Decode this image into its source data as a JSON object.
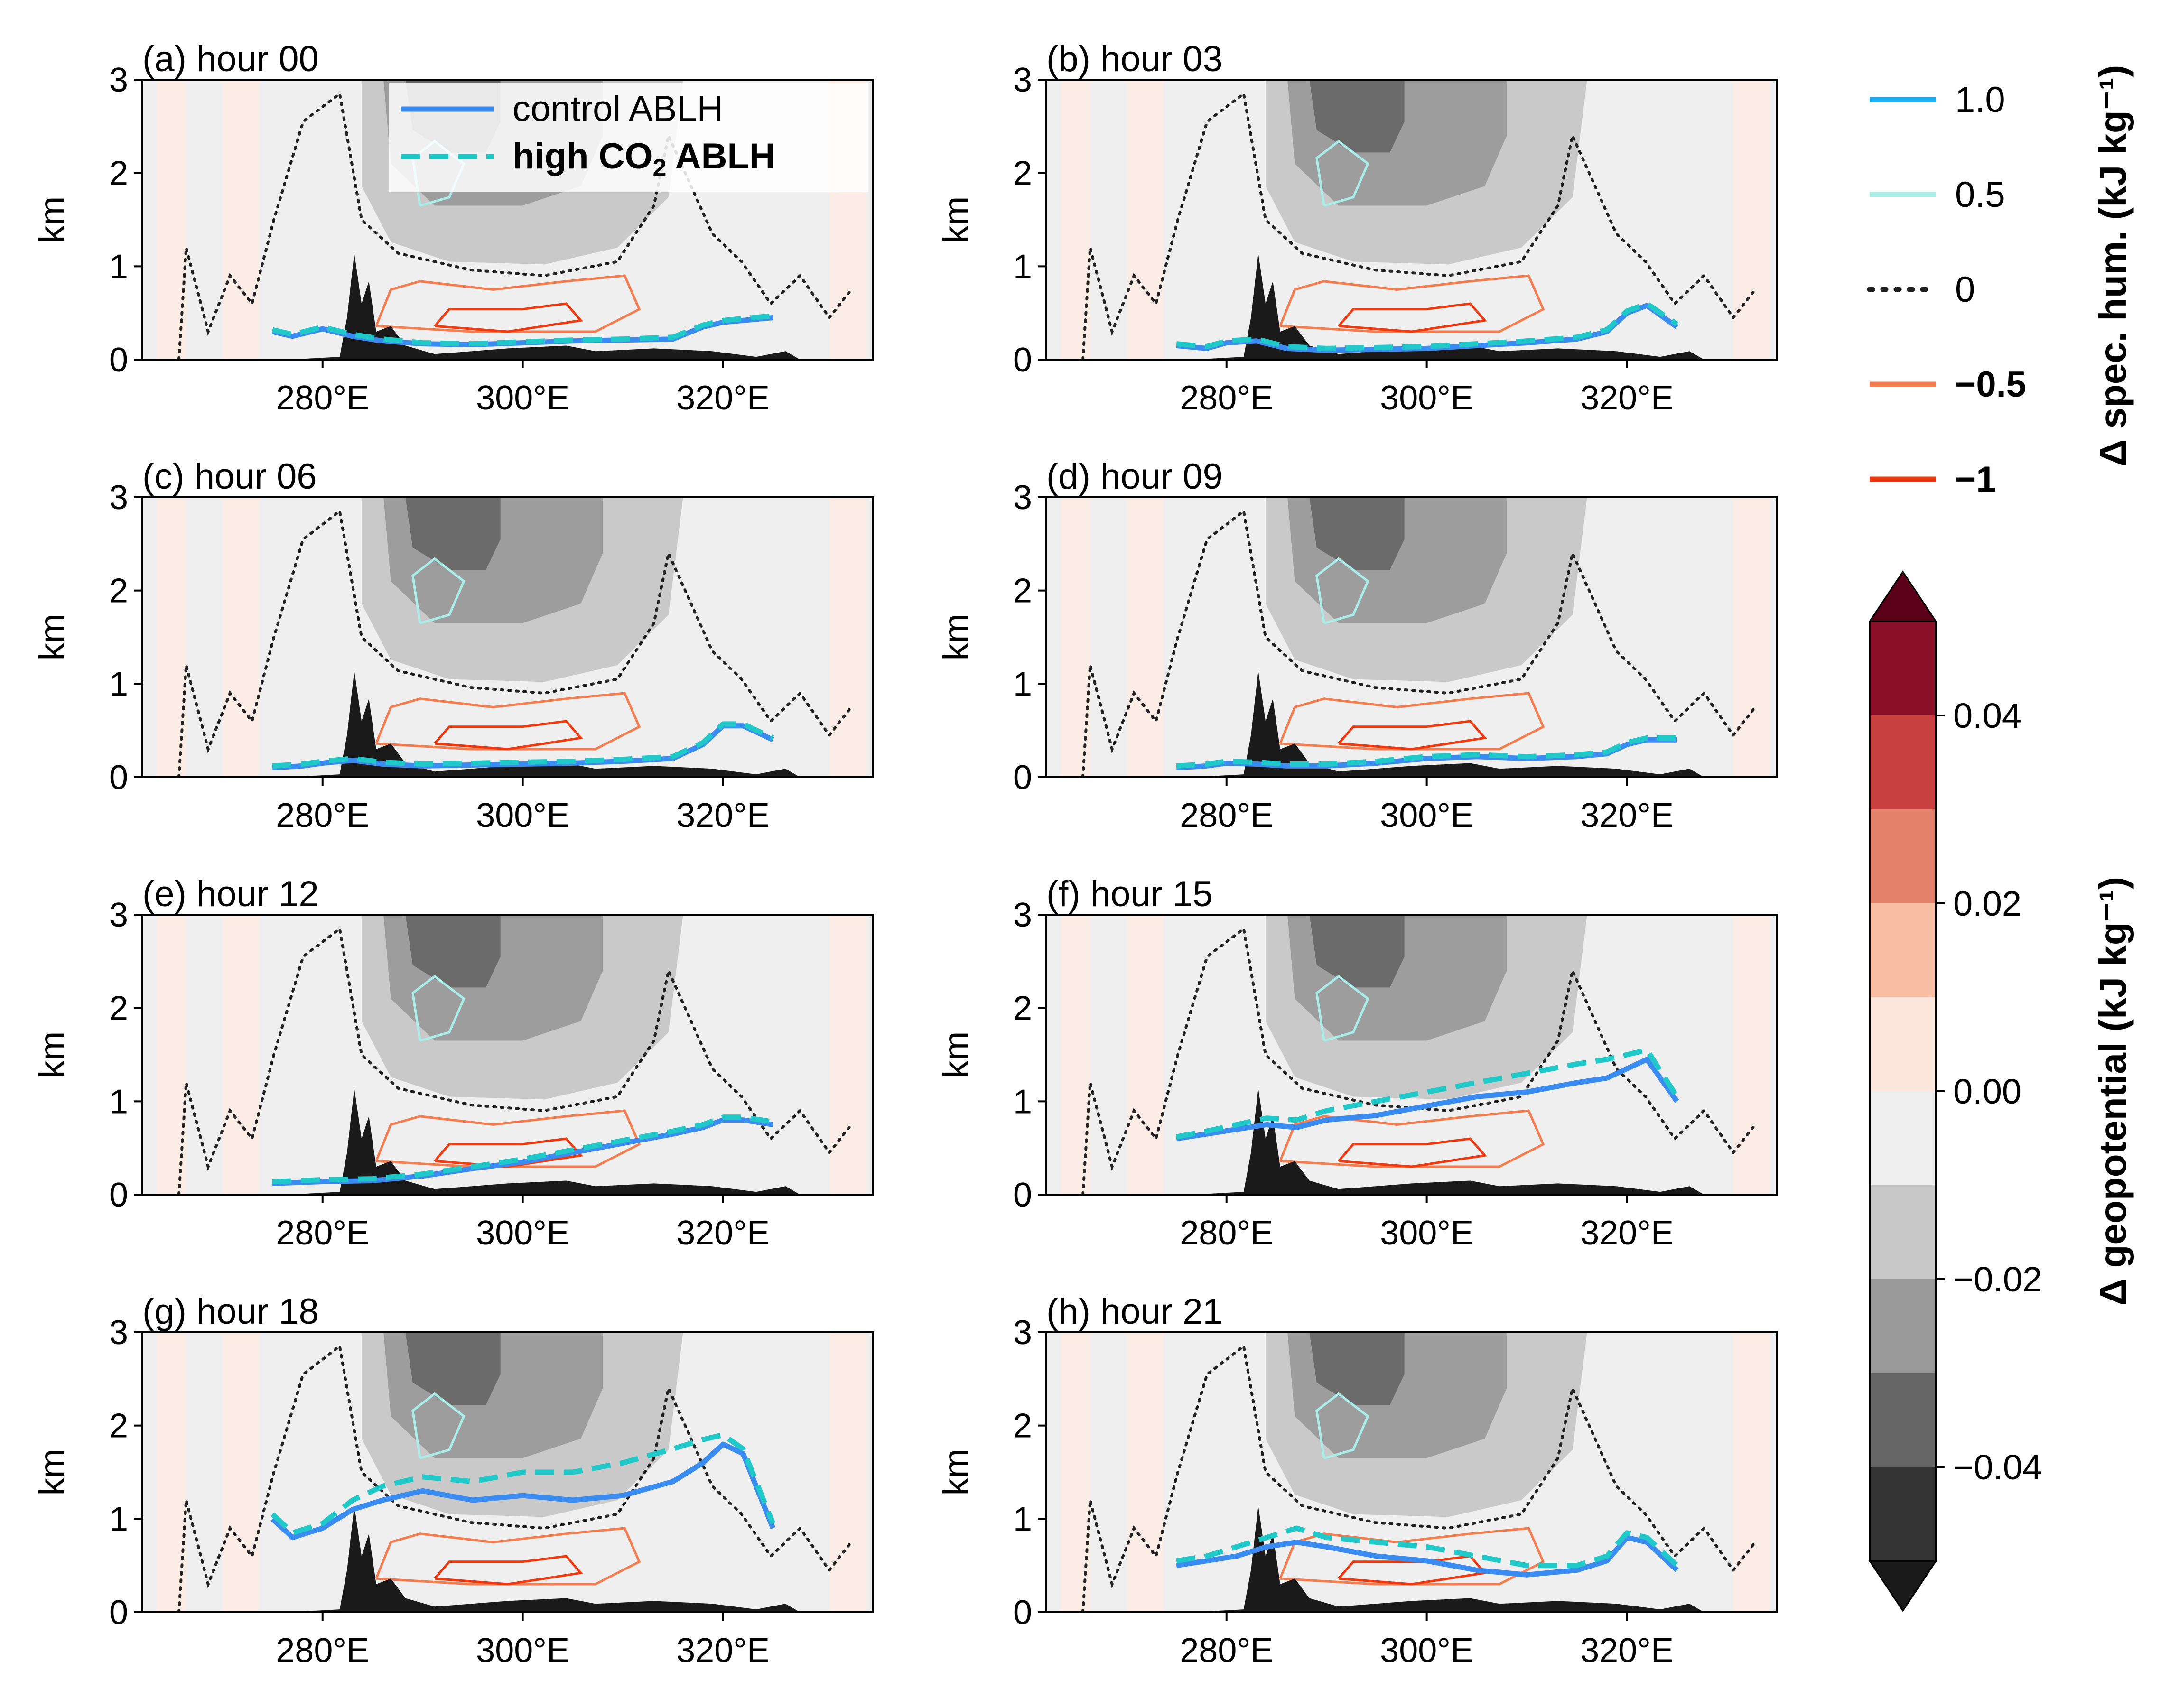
{
  "chart_data": [
    {
      "type": "line",
      "panel": "a",
      "title": "(a) hour 00",
      "ylabel": "km",
      "xlabel": "",
      "xlim": [
        262,
        335
      ],
      "ylim": [
        0,
        3
      ],
      "x_ticks": [
        "280°E",
        "300°E",
        "320°E"
      ],
      "x_tick_values": [
        280,
        300,
        320
      ],
      "y_ticks": [
        "0",
        "1",
        "2",
        "3"
      ],
      "legend": [
        {
          "label": "control ABLH",
          "style": "solid",
          "color": "#3b8cf0"
        },
        {
          "label": "high CO",
          "sub": "2",
          "suffix": " ABLH",
          "style": "dashed",
          "color": "#20c8c8",
          "bold": true
        }
      ],
      "series": [
        {
          "name": "control ABLH",
          "x": [
            275,
            277,
            280,
            283,
            286,
            290,
            295,
            300,
            305,
            310,
            315,
            318,
            320,
            322,
            325
          ],
          "y": [
            0.3,
            0.25,
            0.33,
            0.25,
            0.2,
            0.17,
            0.16,
            0.18,
            0.2,
            0.21,
            0.22,
            0.35,
            0.4,
            0.42,
            0.45
          ]
        },
        {
          "name": "high CO2 ABLH",
          "x": [
            275,
            277,
            280,
            283,
            286,
            290,
            295,
            300,
            305,
            310,
            315,
            318,
            320,
            322,
            325
          ],
          "y": [
            0.32,
            0.27,
            0.35,
            0.27,
            0.22,
            0.18,
            0.17,
            0.19,
            0.21,
            0.22,
            0.24,
            0.37,
            0.42,
            0.44,
            0.47
          ]
        }
      ]
    },
    {
      "type": "line",
      "panel": "b",
      "title": "(b) hour 03",
      "ylabel": "km",
      "xlim": [
        262,
        335
      ],
      "ylim": [
        0,
        3
      ],
      "x_ticks": [
        "280°E",
        "300°E",
        "320°E"
      ],
      "x_tick_values": [
        280,
        300,
        320
      ],
      "y_ticks": [
        "0",
        "1",
        "2",
        "3"
      ],
      "series": [
        {
          "name": "control ABLH",
          "x": [
            275,
            278,
            280,
            283,
            286,
            290,
            295,
            300,
            305,
            310,
            315,
            318,
            320,
            322,
            325
          ],
          "y": [
            0.15,
            0.12,
            0.18,
            0.2,
            0.12,
            0.1,
            0.11,
            0.12,
            0.15,
            0.18,
            0.22,
            0.3,
            0.5,
            0.58,
            0.35
          ]
        },
        {
          "name": "high CO2 ABLH",
          "x": [
            275,
            278,
            280,
            283,
            286,
            290,
            295,
            300,
            305,
            310,
            315,
            318,
            320,
            322,
            325
          ],
          "y": [
            0.17,
            0.14,
            0.2,
            0.22,
            0.14,
            0.12,
            0.13,
            0.14,
            0.17,
            0.2,
            0.24,
            0.32,
            0.52,
            0.6,
            0.38
          ]
        }
      ]
    },
    {
      "type": "line",
      "panel": "c",
      "title": "(c) hour 06",
      "ylabel": "km",
      "xlim": [
        262,
        335
      ],
      "ylim": [
        0,
        3
      ],
      "x_ticks": [
        "280°E",
        "300°E",
        "320°E"
      ],
      "x_tick_values": [
        280,
        300,
        320
      ],
      "y_ticks": [
        "0",
        "1",
        "2",
        "3"
      ],
      "series": [
        {
          "name": "control ABLH",
          "x": [
            275,
            278,
            280,
            283,
            286,
            290,
            295,
            300,
            305,
            310,
            315,
            318,
            320,
            322,
            325
          ],
          "y": [
            0.1,
            0.12,
            0.15,
            0.18,
            0.14,
            0.12,
            0.13,
            0.14,
            0.15,
            0.17,
            0.2,
            0.35,
            0.55,
            0.55,
            0.4
          ]
        },
        {
          "name": "high CO2 ABLH",
          "x": [
            275,
            278,
            280,
            283,
            286,
            290,
            295,
            300,
            305,
            310,
            315,
            318,
            320,
            322,
            325
          ],
          "y": [
            0.12,
            0.14,
            0.17,
            0.2,
            0.16,
            0.14,
            0.15,
            0.16,
            0.17,
            0.19,
            0.22,
            0.37,
            0.57,
            0.57,
            0.42
          ]
        }
      ]
    },
    {
      "type": "line",
      "panel": "d",
      "title": "(d) hour 09",
      "ylabel": "km",
      "xlim": [
        262,
        335
      ],
      "ylim": [
        0,
        3
      ],
      "x_ticks": [
        "280°E",
        "300°E",
        "320°E"
      ],
      "x_tick_values": [
        280,
        300,
        320
      ],
      "y_ticks": [
        "0",
        "1",
        "2",
        "3"
      ],
      "series": [
        {
          "name": "control ABLH",
          "x": [
            275,
            278,
            280,
            283,
            286,
            290,
            295,
            300,
            305,
            310,
            315,
            318,
            320,
            322,
            325
          ],
          "y": [
            0.1,
            0.12,
            0.15,
            0.14,
            0.12,
            0.12,
            0.15,
            0.2,
            0.22,
            0.2,
            0.22,
            0.25,
            0.35,
            0.4,
            0.4
          ]
        },
        {
          "name": "high CO2 ABLH",
          "x": [
            275,
            278,
            280,
            283,
            286,
            290,
            295,
            300,
            305,
            310,
            315,
            318,
            320,
            322,
            325
          ],
          "y": [
            0.12,
            0.14,
            0.17,
            0.16,
            0.14,
            0.14,
            0.17,
            0.22,
            0.24,
            0.22,
            0.24,
            0.27,
            0.37,
            0.42,
            0.42
          ]
        }
      ]
    },
    {
      "type": "line",
      "panel": "e",
      "title": "(e) hour 12",
      "ylabel": "km",
      "xlim": [
        262,
        335
      ],
      "ylim": [
        0,
        3
      ],
      "x_ticks": [
        "280°E",
        "300°E",
        "320°E"
      ],
      "x_tick_values": [
        280,
        300,
        320
      ],
      "y_ticks": [
        "0",
        "1",
        "2",
        "3"
      ],
      "series": [
        {
          "name": "control ABLH",
          "x": [
            275,
            280,
            285,
            290,
            295,
            300,
            305,
            310,
            315,
            318,
            320,
            322,
            325
          ],
          "y": [
            0.12,
            0.14,
            0.15,
            0.2,
            0.28,
            0.35,
            0.45,
            0.55,
            0.65,
            0.72,
            0.8,
            0.8,
            0.75
          ]
        },
        {
          "name": "high CO2 ABLH",
          "x": [
            275,
            280,
            285,
            290,
            295,
            300,
            305,
            310,
            315,
            318,
            320,
            322,
            325
          ],
          "y": [
            0.14,
            0.16,
            0.17,
            0.22,
            0.3,
            0.38,
            0.48,
            0.58,
            0.68,
            0.75,
            0.83,
            0.83,
            0.78
          ]
        }
      ]
    },
    {
      "type": "line",
      "panel": "f",
      "title": "(f) hour 15",
      "ylabel": "km",
      "xlim": [
        262,
        335
      ],
      "ylim": [
        0,
        3
      ],
      "x_ticks": [
        "280°E",
        "300°E",
        "320°E"
      ],
      "x_tick_values": [
        280,
        300,
        320
      ],
      "y_ticks": [
        "0",
        "1",
        "2",
        "3"
      ],
      "series": [
        {
          "name": "control ABLH",
          "x": [
            275,
            278,
            281,
            284,
            287,
            290,
            295,
            300,
            305,
            310,
            315,
            318,
            320,
            322,
            325
          ],
          "y": [
            0.6,
            0.65,
            0.7,
            0.75,
            0.72,
            0.8,
            0.85,
            0.95,
            1.05,
            1.1,
            1.2,
            1.25,
            1.35,
            1.45,
            1.0
          ]
        },
        {
          "name": "high CO2 ABLH",
          "x": [
            275,
            278,
            281,
            284,
            287,
            290,
            295,
            300,
            305,
            310,
            315,
            318,
            320,
            322,
            325
          ],
          "y": [
            0.62,
            0.68,
            0.75,
            0.82,
            0.8,
            0.9,
            1.0,
            1.1,
            1.2,
            1.3,
            1.4,
            1.45,
            1.5,
            1.55,
            1.05
          ]
        }
      ]
    },
    {
      "type": "line",
      "panel": "g",
      "title": "(g) hour 18",
      "ylabel": "km",
      "xlim": [
        262,
        335
      ],
      "ylim": [
        0,
        3
      ],
      "x_ticks": [
        "280°E",
        "300°E",
        "320°E"
      ],
      "x_tick_values": [
        280,
        300,
        320
      ],
      "y_ticks": [
        "0",
        "1",
        "2",
        "3"
      ],
      "series": [
        {
          "name": "control ABLH",
          "x": [
            275,
            277,
            280,
            283,
            286,
            290,
            295,
            300,
            305,
            310,
            315,
            318,
            320,
            322,
            325
          ],
          "y": [
            1.0,
            0.8,
            0.9,
            1.1,
            1.2,
            1.3,
            1.2,
            1.25,
            1.2,
            1.25,
            1.4,
            1.6,
            1.8,
            1.7,
            0.9
          ]
        },
        {
          "name": "high CO2 ABLH",
          "x": [
            275,
            277,
            280,
            283,
            286,
            290,
            295,
            300,
            305,
            310,
            315,
            318,
            320,
            322,
            325
          ],
          "y": [
            1.05,
            0.85,
            0.95,
            1.2,
            1.35,
            1.45,
            1.4,
            1.5,
            1.5,
            1.6,
            1.75,
            1.85,
            1.9,
            1.75,
            0.95
          ]
        }
      ]
    },
    {
      "type": "line",
      "panel": "h",
      "title": "(h) hour 21",
      "ylabel": "km",
      "xlim": [
        262,
        335
      ],
      "ylim": [
        0,
        3
      ],
      "x_ticks": [
        "280°E",
        "300°E",
        "320°E"
      ],
      "x_tick_values": [
        280,
        300,
        320
      ],
      "y_ticks": [
        "0",
        "1",
        "2",
        "3"
      ],
      "series": [
        {
          "name": "control ABLH",
          "x": [
            275,
            278,
            281,
            284,
            287,
            290,
            295,
            300,
            305,
            310,
            315,
            318,
            320,
            322,
            325
          ],
          "y": [
            0.5,
            0.55,
            0.6,
            0.7,
            0.75,
            0.7,
            0.6,
            0.55,
            0.45,
            0.4,
            0.45,
            0.55,
            0.8,
            0.75,
            0.45
          ]
        },
        {
          "name": "high CO2 ABLH",
          "x": [
            275,
            278,
            281,
            284,
            287,
            290,
            295,
            300,
            305,
            310,
            315,
            318,
            320,
            322,
            325
          ],
          "y": [
            0.55,
            0.6,
            0.7,
            0.8,
            0.9,
            0.8,
            0.75,
            0.7,
            0.6,
            0.5,
            0.5,
            0.6,
            0.85,
            0.8,
            0.5
          ]
        }
      ]
    }
  ],
  "humidity_legend": {
    "label": "Δ spec. hum. (kJ kg⁻¹)",
    "items": [
      {
        "label": "1.0",
        "color": "#1aaaf0",
        "style": "solid",
        "bold": false
      },
      {
        "label": "0.5",
        "color": "#a9ece8",
        "style": "solid",
        "bold": false
      },
      {
        "label": "0",
        "color": "#222222",
        "style": "dotted",
        "bold": false
      },
      {
        "label": "−0.5",
        "color": "#f47d50",
        "style": "solid",
        "bold": true
      },
      {
        "label": "−1",
        "color": "#ee3a10",
        "style": "solid",
        "bold": true
      }
    ]
  },
  "colorbar": {
    "label": "Δ geopotential (kJ kg⁻¹)",
    "tick_labels": [
      "0.04",
      "0.02",
      "0.00",
      "−0.02",
      "−0.04"
    ],
    "colors": [
      "#1a1a1a",
      "#333333",
      "#666666",
      "#9a9a9a",
      "#c8c8c8",
      "#eeeeee",
      "#fde6dc",
      "#f8bea4",
      "#e2826a",
      "#c94040",
      "#8a0f28",
      "#5a0018"
    ],
    "extend": "both"
  }
}
